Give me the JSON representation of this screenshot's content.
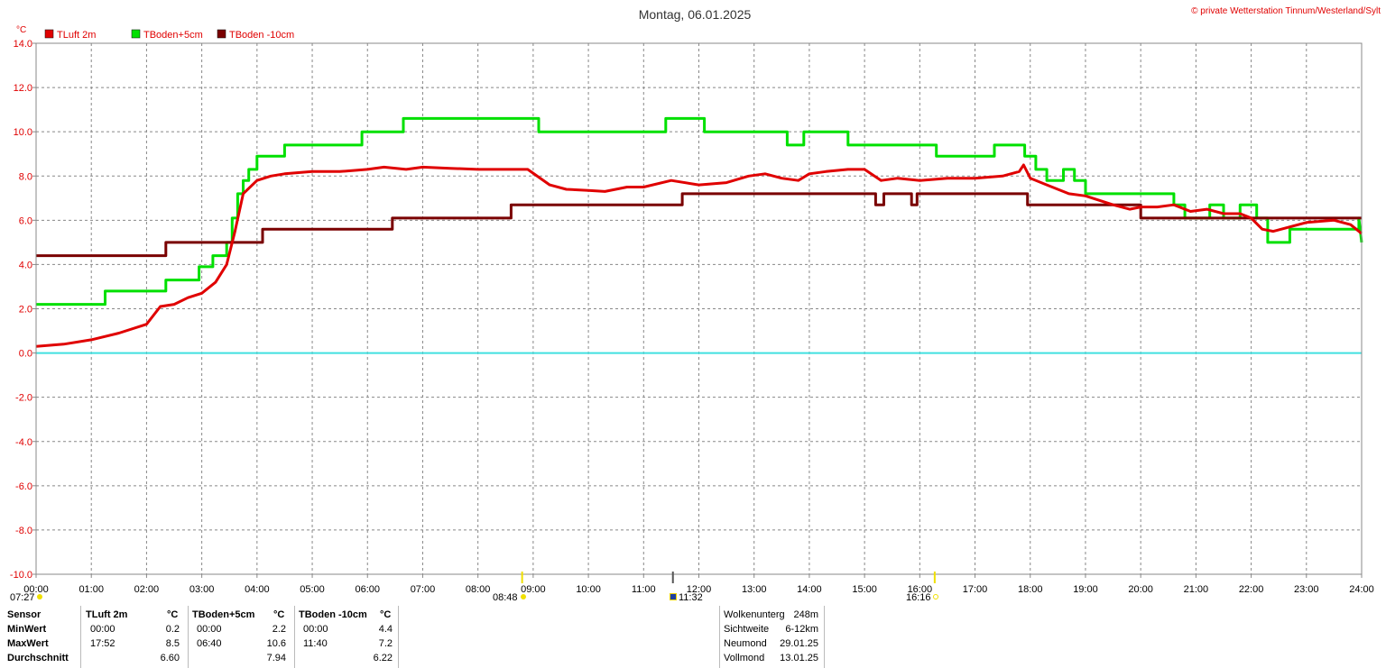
{
  "header": {
    "title": "Montag, 06.01.2025",
    "copyright": "© private Wetterstation Tinnum/Westerland/Sylt",
    "unit": "°C"
  },
  "colors": {
    "tluft": "#e00000",
    "tboden5": "#00e000",
    "tboden10": "#7a0000",
    "zero_line": "#40e0e0",
    "grid": "#888888"
  },
  "chart_data": {
    "type": "line",
    "xlabel": "",
    "ylabel": "°C",
    "x_ticks": [
      "00:00",
      "01:00",
      "02:00",
      "03:00",
      "04:00",
      "05:00",
      "06:00",
      "07:00",
      "08:00",
      "09:00",
      "10:00",
      "11:00",
      "12:00",
      "13:00",
      "14:00",
      "15:00",
      "16:00",
      "17:00",
      "18:00",
      "19:00",
      "20:00",
      "21:00",
      "22:00",
      "23:00",
      "24:00"
    ],
    "y_ticks": [
      "14.0",
      "12.0",
      "10.0",
      "8.0",
      "6.0",
      "4.0",
      "2.0",
      "0.0",
      "-2.0",
      "-4.0",
      "-6.0",
      "-8.0",
      "-10.0"
    ],
    "xlim": [
      0,
      24
    ],
    "ylim": [
      -10,
      14
    ],
    "grid": true,
    "legend_position": "top-left",
    "series": [
      {
        "name": "TLuft 2m",
        "color": "#e00000",
        "x": [
          0.0,
          0.5,
          1.0,
          1.5,
          2.0,
          2.25,
          2.5,
          2.75,
          3.0,
          3.25,
          3.45,
          3.6,
          3.75,
          4.0,
          4.25,
          4.5,
          5.0,
          5.5,
          6.0,
          6.3,
          6.7,
          7.0,
          7.5,
          8.0,
          8.5,
          8.9,
          9.3,
          9.6,
          10.0,
          10.3,
          10.7,
          11.0,
          11.5,
          12.0,
          12.5,
          12.9,
          13.2,
          13.5,
          13.8,
          14.0,
          14.3,
          14.7,
          15.0,
          15.3,
          15.6,
          16.0,
          16.5,
          17.0,
          17.5,
          17.8,
          17.88,
          18.0,
          18.3,
          18.7,
          19.0,
          19.5,
          19.8,
          20.0,
          20.3,
          20.6,
          20.9,
          21.2,
          21.5,
          21.8,
          22.0,
          22.2,
          22.4,
          22.7,
          23.0,
          23.5,
          23.8,
          24.0
        ],
        "y": [
          0.3,
          0.4,
          0.6,
          0.9,
          1.3,
          2.1,
          2.2,
          2.5,
          2.7,
          3.2,
          4.0,
          5.5,
          7.2,
          7.8,
          8.0,
          8.1,
          8.2,
          8.2,
          8.3,
          8.4,
          8.3,
          8.4,
          8.35,
          8.3,
          8.3,
          8.3,
          7.6,
          7.4,
          7.35,
          7.3,
          7.5,
          7.5,
          7.8,
          7.6,
          7.7,
          8.0,
          8.1,
          7.9,
          7.8,
          8.1,
          8.2,
          8.3,
          8.3,
          7.8,
          7.9,
          7.8,
          7.9,
          7.9,
          8.0,
          8.2,
          8.5,
          7.9,
          7.6,
          7.2,
          7.1,
          6.7,
          6.5,
          6.6,
          6.6,
          6.7,
          6.4,
          6.5,
          6.3,
          6.3,
          6.1,
          5.6,
          5.5,
          5.7,
          5.9,
          6.0,
          5.8,
          5.4
        ]
      },
      {
        "name": "TBoden+5cm",
        "color": "#00e000",
        "x": [
          0.0,
          1.25,
          1.25,
          2.35,
          2.35,
          2.95,
          2.95,
          3.2,
          3.2,
          3.45,
          3.45,
          3.55,
          3.55,
          3.65,
          3.65,
          3.75,
          3.75,
          3.85,
          3.85,
          4.0,
          4.0,
          4.5,
          4.5,
          5.9,
          5.9,
          6.65,
          6.65,
          7.0,
          7.0,
          9.1,
          9.1,
          11.4,
          11.4,
          12.1,
          12.1,
          13.6,
          13.6,
          13.9,
          13.9,
          14.7,
          14.7,
          15.5,
          15.5,
          16.3,
          16.3,
          17.35,
          17.35,
          17.9,
          17.9,
          18.1,
          18.1,
          18.3,
          18.3,
          18.6,
          18.6,
          18.8,
          18.8,
          19.0,
          19.0,
          19.6,
          19.6,
          20.6,
          20.6,
          20.8,
          20.8,
          21.25,
          21.25,
          21.5,
          21.5,
          21.8,
          21.8,
          22.1,
          22.1,
          22.3,
          22.3,
          22.7,
          22.7,
          23.6,
          23.6,
          23.95,
          23.95,
          24.0
        ],
        "y": [
          2.2,
          2.2,
          2.8,
          2.8,
          3.3,
          3.3,
          3.9,
          3.9,
          4.4,
          4.4,
          5.0,
          5.0,
          6.1,
          6.1,
          7.2,
          7.2,
          7.8,
          7.8,
          8.3,
          8.3,
          8.9,
          8.9,
          9.4,
          9.4,
          10.0,
          10.0,
          10.6,
          10.6,
          10.6,
          10.6,
          10.0,
          10.0,
          10.6,
          10.6,
          10.0,
          10.0,
          9.4,
          9.4,
          10.0,
          10.0,
          9.4,
          9.4,
          9.4,
          9.4,
          8.9,
          8.9,
          9.4,
          9.4,
          8.9,
          8.9,
          8.3,
          8.3,
          7.8,
          7.8,
          8.3,
          8.3,
          7.8,
          7.8,
          7.2,
          7.2,
          7.2,
          7.2,
          6.7,
          6.7,
          6.1,
          6.1,
          6.7,
          6.7,
          6.1,
          6.1,
          6.7,
          6.7,
          6.1,
          6.1,
          5.0,
          5.0,
          5.6,
          5.6,
          5.6,
          5.6,
          6.1,
          5.0
        ]
      },
      {
        "name": "TBoden -10cm",
        "color": "#7a0000",
        "x": [
          0.0,
          2.35,
          2.35,
          4.1,
          4.1,
          6.45,
          6.45,
          8.6,
          8.6,
          11.7,
          11.7,
          15.2,
          15.2,
          15.35,
          15.35,
          15.85,
          15.85,
          15.95,
          15.95,
          16.05,
          16.05,
          17.95,
          17.95,
          19.6,
          19.6,
          20.0,
          20.0,
          24.0
        ],
        "y": [
          4.4,
          4.4,
          5.0,
          5.0,
          5.6,
          5.6,
          6.1,
          6.1,
          6.7,
          6.7,
          7.2,
          7.2,
          6.7,
          6.7,
          7.2,
          7.2,
          6.7,
          6.7,
          7.2,
          7.2,
          7.2,
          7.2,
          6.7,
          6.7,
          6.7,
          6.7,
          6.1,
          6.1
        ]
      }
    ]
  },
  "sun_moon": {
    "sunrise": "07:27",
    "noon": "08:48",
    "moon": "11:32",
    "sunset": "16:16"
  },
  "stats": {
    "headers": [
      "Sensor",
      "TLuft 2m",
      "°C",
      "TBoden+5cm",
      "°C",
      "TBoden -10cm",
      "°C"
    ],
    "rows": [
      {
        "label": "MinWert",
        "t1": "00:00",
        "v1": "0.2",
        "t2": "00:00",
        "v2": "2.2",
        "t3": "00:00",
        "v3": "4.4"
      },
      {
        "label": "MaxWert",
        "t1": "17:52",
        "v1": "8.5",
        "t2": "06:40",
        "v2": "10.6",
        "t3": "11:40",
        "v3": "7.2"
      },
      {
        "label": "Durchschnitt",
        "t1": "",
        "v1": "6.60",
        "t2": "",
        "v2": "7.94",
        "t3": "",
        "v3": "6.22"
      }
    ]
  },
  "extra": [
    {
      "label": "Wolkenunterg",
      "value": "248m"
    },
    {
      "label": "Sichtweite",
      "value": "6-12km"
    },
    {
      "label": "Neumond",
      "value": "29.01.25"
    },
    {
      "label": "Vollmond",
      "value": "13.01.25"
    }
  ]
}
